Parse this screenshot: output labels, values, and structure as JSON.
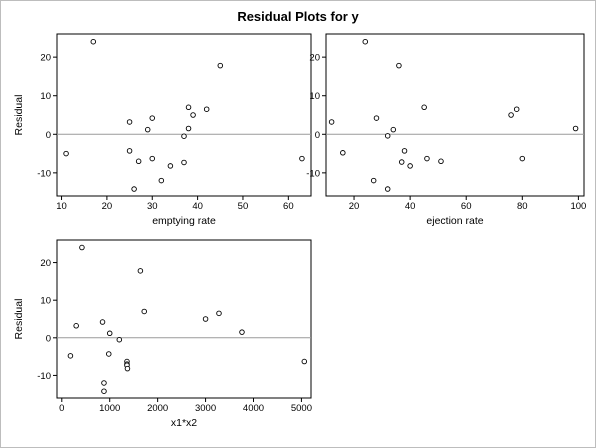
{
  "page": {
    "title": "Residual Plots for y"
  },
  "chart_data": [
    {
      "type": "scatter",
      "title": "",
      "xlabel": "emptying rate",
      "ylabel": "Residual",
      "xlim": [
        9,
        65
      ],
      "ylim": [
        -16,
        26
      ],
      "xticks": [
        10,
        20,
        30,
        40,
        50,
        60
      ],
      "yticks": [
        -10,
        0,
        10,
        20
      ],
      "ref_line_y": 0,
      "points": [
        {
          "x": 11,
          "y": -5
        },
        {
          "x": 17,
          "y": 24
        },
        {
          "x": 25,
          "y": 3.2
        },
        {
          "x": 25,
          "y": -4.3
        },
        {
          "x": 26,
          "y": -14.2
        },
        {
          "x": 27,
          "y": -7
        },
        {
          "x": 29,
          "y": 1.2
        },
        {
          "x": 30,
          "y": 4.2
        },
        {
          "x": 30,
          "y": -6.3
        },
        {
          "x": 32,
          "y": -12
        },
        {
          "x": 34,
          "y": -8.2
        },
        {
          "x": 37,
          "y": -0.5
        },
        {
          "x": 37,
          "y": -7.3
        },
        {
          "x": 38,
          "y": 7
        },
        {
          "x": 38,
          "y": 1.5
        },
        {
          "x": 39,
          "y": 5
        },
        {
          "x": 42,
          "y": 6.5
        },
        {
          "x": 45,
          "y": 17.8
        },
        {
          "x": 63,
          "y": -6.3
        }
      ]
    },
    {
      "type": "scatter",
      "title": "",
      "xlabel": "ejection rate",
      "ylabel": "",
      "xlim": [
        10,
        102
      ],
      "ylim": [
        -16,
        26
      ],
      "xticks": [
        20,
        40,
        60,
        80,
        100
      ],
      "yticks": [
        -10,
        0,
        10,
        20
      ],
      "ref_line_y": 0,
      "points": [
        {
          "x": 12,
          "y": 3.2
        },
        {
          "x": 16,
          "y": -4.8
        },
        {
          "x": 24,
          "y": 24
        },
        {
          "x": 27,
          "y": -12
        },
        {
          "x": 28,
          "y": 4.2
        },
        {
          "x": 32,
          "y": -0.4
        },
        {
          "x": 32,
          "y": -14.2
        },
        {
          "x": 34,
          "y": 1.2
        },
        {
          "x": 36,
          "y": 17.8
        },
        {
          "x": 37,
          "y": -7.2
        },
        {
          "x": 38,
          "y": -4.3
        },
        {
          "x": 40,
          "y": -8.2
        },
        {
          "x": 45,
          "y": 7
        },
        {
          "x": 46,
          "y": -6.3
        },
        {
          "x": 51,
          "y": -7
        },
        {
          "x": 76,
          "y": 5
        },
        {
          "x": 78,
          "y": 6.5
        },
        {
          "x": 80,
          "y": -6.3
        },
        {
          "x": 99,
          "y": 1.5
        }
      ]
    },
    {
      "type": "scatter",
      "title": "",
      "xlabel": "x1*x2",
      "ylabel": "Residual",
      "xlim": [
        -100,
        5200
      ],
      "ylim": [
        -16,
        26
      ],
      "xticks": [
        0,
        1000,
        2000,
        3000,
        4000,
        5000
      ],
      "yticks": [
        -10,
        0,
        10,
        20
      ],
      "ref_line_y": 0,
      "points": [
        {
          "x": 180,
          "y": -4.8
        },
        {
          "x": 300,
          "y": 3.2
        },
        {
          "x": 420,
          "y": 24
        },
        {
          "x": 850,
          "y": 4.2
        },
        {
          "x": 880,
          "y": -12
        },
        {
          "x": 880,
          "y": -14.2
        },
        {
          "x": 980,
          "y": -4.3
        },
        {
          "x": 1000,
          "y": 1.2
        },
        {
          "x": 1200,
          "y": -0.5
        },
        {
          "x": 1360,
          "y": -6.3
        },
        {
          "x": 1360,
          "y": -7
        },
        {
          "x": 1360,
          "y": -7.3
        },
        {
          "x": 1370,
          "y": -8.2
        },
        {
          "x": 1640,
          "y": 17.8
        },
        {
          "x": 1720,
          "y": 7
        },
        {
          "x": 3000,
          "y": 5
        },
        {
          "x": 3280,
          "y": 6.5
        },
        {
          "x": 3760,
          "y": 1.5
        },
        {
          "x": 5060,
          "y": -6.3
        }
      ]
    }
  ]
}
